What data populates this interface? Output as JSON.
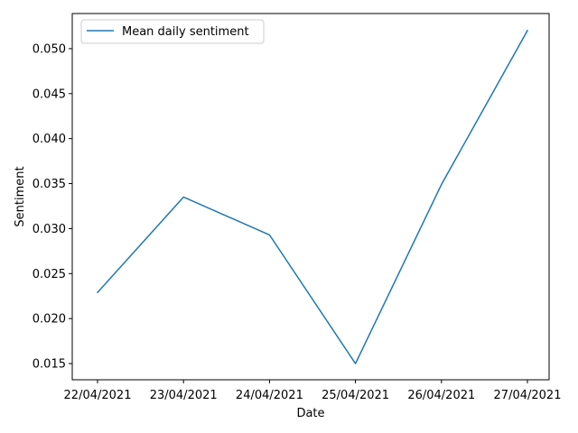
{
  "chart_data": {
    "type": "line",
    "title": "",
    "xlabel": "Date",
    "ylabel": "Sentiment",
    "categories": [
      "22/04/2021",
      "23/04/2021",
      "24/04/2021",
      "25/04/2021",
      "26/04/2021",
      "27/04/2021"
    ],
    "series": [
      {
        "name": "Mean daily sentiment",
        "values": [
          0.0229,
          0.0335,
          0.0293,
          0.015,
          0.0349,
          0.052
        ],
        "color": "#1f77b4"
      }
    ],
    "ylim": [
      0.0132,
      0.0539
    ],
    "yticks": [
      0.015,
      0.02,
      0.025,
      0.03,
      0.035,
      0.04,
      0.045,
      0.05
    ],
    "ytick_labels": [
      "0.015",
      "0.020",
      "0.025",
      "0.030",
      "0.035",
      "0.040",
      "0.045",
      "0.050"
    ],
    "grid": false,
    "legend_position": "top-left"
  }
}
